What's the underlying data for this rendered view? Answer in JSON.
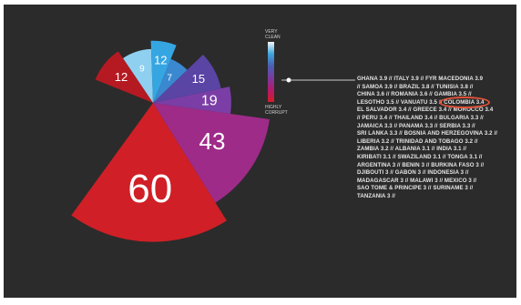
{
  "chart_data": {
    "type": "pie",
    "title": "",
    "slices": [
      {
        "value": 60,
        "label": "60",
        "color": "#d01f26"
      },
      {
        "value": 43,
        "label": "43",
        "color": "#9e2b88"
      },
      {
        "value": 19,
        "label": "19",
        "color": "#7b3ea6"
      },
      {
        "value": 15,
        "label": "15",
        "color": "#5a45a5"
      },
      {
        "value": 7,
        "label": "7",
        "color": "#3a88cf"
      },
      {
        "value": 12,
        "label": "12",
        "color": "#36a6e2"
      },
      {
        "value": 9,
        "label": "9",
        "color": "#8fd0f0"
      },
      {
        "value": 12,
        "label": "12",
        "color": "#b51a22"
      }
    ],
    "scale_legend": {
      "top_label": [
        "VERY",
        "CLEAN"
      ],
      "bottom_label": [
        "HIGHLY",
        "CORRUPT"
      ],
      "gradient": [
        "#f4f7fb",
        "#3ba6dd",
        "#4a5fb0",
        "#7b3aa0",
        "#b31a6a",
        "#d51d26"
      ]
    },
    "country_list": [
      "GHANA 3.9 // ITALY 3.9 // FYR MACEDONIA 3.9",
      "// SAMOA 3.9 // BRAZIL 3.8 // TUNISIA 3.8 //",
      "CHINA 3.6 // ROMANIA 3.6 // GAMBIA 3.5 //",
      "LESOTHO 3.5 // VANUATU 3.5 //",
      "EL SALVADOR 3.4 // GREECE 3.4 // MOROCCO 3.4",
      "// PERU 3.4 // THAILAND 3.4 // BULGARIA 3.3 //",
      "JAMAICA 3.3 // PANAMA 3.3 // SERBIA 3.3 //",
      "SRI LANKA 3.3 // BOSNIA AND HERZEGOVINA 3.2 //",
      "LIBERIA 3.2 // TRINIDAD AND TOBAGO 3.2 //",
      "ZAMBIA 3.2 // ALBANIA 3.1 // INDIA 3.1 //",
      "KIRIBATI 3.1 // SWAZILAND 3.1 // TONGA 3.1 //",
      "ARGENTINA 3 // BENIN 3 // BURKINA FASO 3 //",
      "DJIBOUTI 3 // GABON 3 // INDONESIA 3 //",
      "MADAGASCAR 3 // MALAWI 3 // MEXICO 3 //",
      "SAO TOME & PRINCIPE 3 // SURINAME 3 //",
      "TANZANIA 3 //"
    ],
    "highlighted_entry": "COLOMBIA 3.4",
    "highlight_color": "#e0523a"
  }
}
